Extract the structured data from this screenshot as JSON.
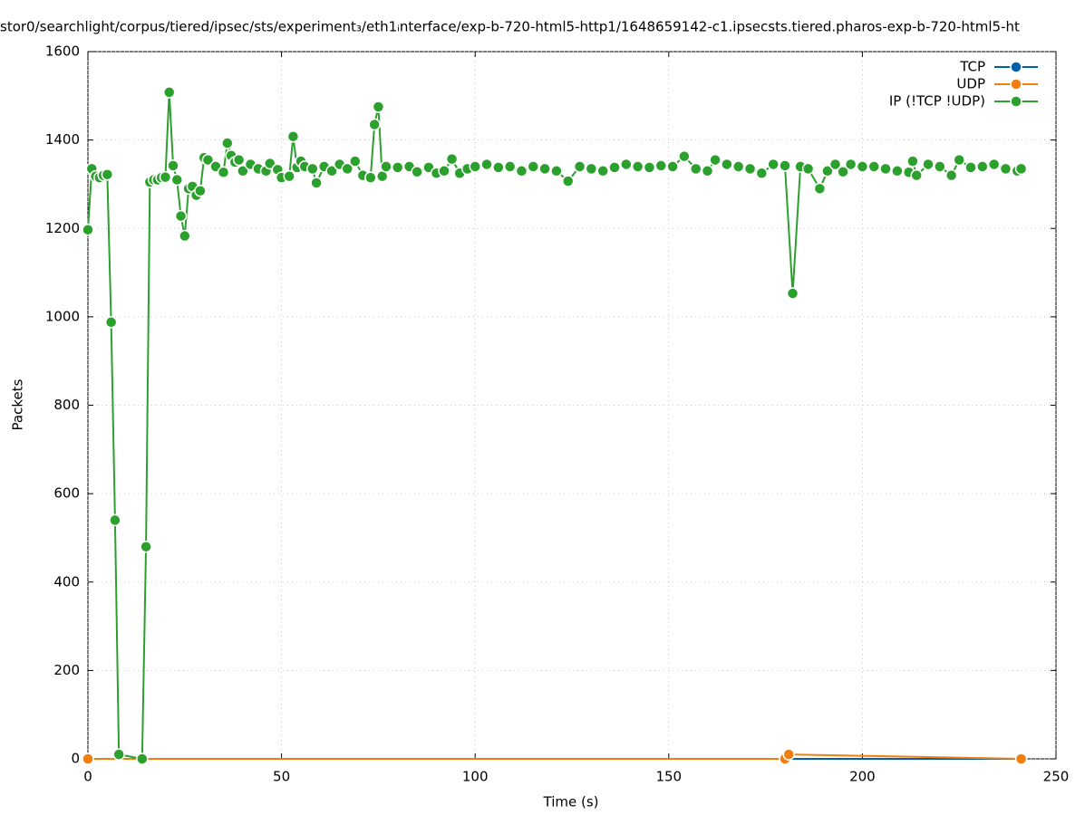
{
  "chart_data": {
    "type": "line",
    "title": "stor0/searchlight/corpus/tiered/ipsec/sts/experiment₃/eth1ᵢnterface/exp-b-720-html5-http1/1648659142-c1.ipsecsts.tiered.pharos-exp-b-720-html5-ht",
    "xlabel": "Time (s)",
    "ylabel": "Packets",
    "xlim": [
      0,
      250
    ],
    "xticks": [
      0,
      50,
      100,
      150,
      200,
      250
    ],
    "ylim": [
      0,
      1600
    ],
    "yticks": [
      0,
      200,
      400,
      600,
      800,
      1000,
      1200,
      1400,
      1600
    ],
    "grid": true,
    "legend": "upper right",
    "series": [
      {
        "name": "TCP",
        "color": "#0060ad",
        "x": [
          0,
          241
        ],
        "values": [
          0,
          0
        ]
      },
      {
        "name": "UDP",
        "color": "#f07f10",
        "x": [
          0,
          180,
          181,
          241
        ],
        "values": [
          0,
          0,
          10,
          0
        ]
      },
      {
        "name": "IP (!TCP  !UDP)",
        "color": "#2ca02c",
        "x": [
          0,
          1,
          2,
          3,
          4,
          5,
          6,
          7,
          8,
          14,
          15,
          16,
          17,
          18,
          19,
          20,
          21,
          22,
          23,
          24,
          25,
          26,
          27,
          28,
          29,
          30,
          31,
          33,
          35,
          36,
          37,
          38,
          39,
          40,
          42,
          44,
          46,
          47,
          49,
          50,
          52,
          53,
          54,
          55,
          56,
          58,
          59,
          61,
          63,
          65,
          67,
          69,
          71,
          73,
          74,
          75,
          76,
          77,
          80,
          83,
          85,
          88,
          90,
          92,
          94,
          96,
          98,
          100,
          103,
          106,
          109,
          112,
          115,
          118,
          121,
          124,
          127,
          130,
          133,
          136,
          139,
          142,
          145,
          148,
          151,
          154,
          157,
          160,
          162,
          165,
          168,
          171,
          174,
          177,
          180,
          182,
          184,
          186,
          189,
          191,
          193,
          195,
          197,
          200,
          203,
          206,
          209,
          212,
          213,
          214,
          217,
          220,
          223,
          225,
          228,
          231,
          234,
          237,
          240,
          241
        ],
        "values": [
          1197,
          1335,
          1318,
          1315,
          1320,
          1322,
          988,
          540,
          10,
          0,
          480,
          1305,
          1310,
          1310,
          1315,
          1316,
          1508,
          1342,
          1310,
          1228,
          1183,
          1290,
          1295,
          1275,
          1285,
          1360,
          1355,
          1340,
          1327,
          1393,
          1365,
          1350,
          1355,
          1330,
          1345,
          1335,
          1330,
          1347,
          1333,
          1315,
          1318,
          1408,
          1338,
          1352,
          1340,
          1335,
          1303,
          1340,
          1330,
          1345,
          1335,
          1352,
          1320,
          1315,
          1435,
          1475,
          1318,
          1340,
          1338,
          1340,
          1328,
          1338,
          1325,
          1330,
          1357,
          1325,
          1335,
          1340,
          1345,
          1338,
          1340,
          1330,
          1340,
          1335,
          1330,
          1307,
          1340,
          1335,
          1330,
          1338,
          1345,
          1340,
          1338,
          1342,
          1340,
          1363,
          1335,
          1330,
          1355,
          1345,
          1340,
          1335,
          1325,
          1345,
          1342,
          1053,
          1340,
          1335,
          1290,
          1330,
          1345,
          1328,
          1345,
          1340,
          1340,
          1335,
          1330,
          1327,
          1352,
          1320,
          1345,
          1340,
          1320,
          1355,
          1338,
          1340,
          1345,
          1335,
          1330,
          1335
        ]
      }
    ]
  }
}
